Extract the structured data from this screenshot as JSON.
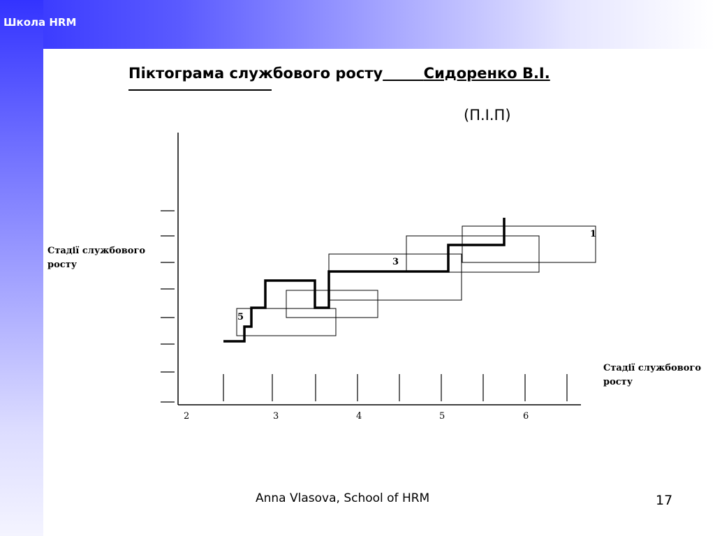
{
  "header": {
    "brand": "Школа HRM"
  },
  "title": {
    "main": "Піктограма службового росту",
    "name": "Сидоренко В.І.",
    "subtitle": "(П.І.П)"
  },
  "diagram": {
    "y_axis_label": "Стадії службового росту",
    "x_axis_label": "Стадії службового росту",
    "x_tick_labels": [
      "2",
      "3",
      "4",
      "5",
      "6"
    ],
    "box_labels": [
      "1",
      "3",
      "5"
    ]
  },
  "footer": {
    "author": "Anna Vlasova, School of HRM",
    "page_number": "17"
  }
}
